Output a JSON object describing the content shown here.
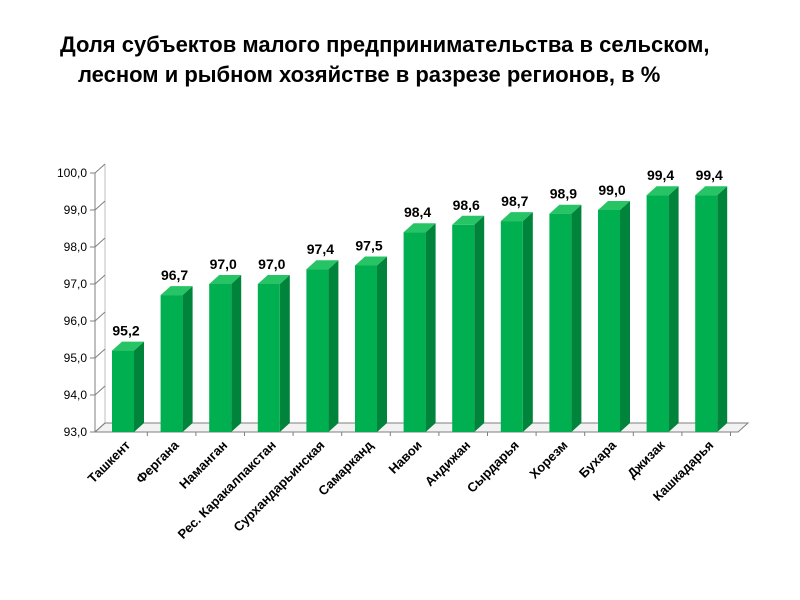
{
  "title_line1": "Доля субъектов малого предпринимательства в сельском,",
  "title_line2": "лесном и рыбном хозяйстве в разрезе регионов, в %",
  "chart_data": {
    "type": "bar",
    "title": "Доля субъектов малого предпринимательства в сельском, лесном и рыбном хозяйстве в разрезе регионов, в %",
    "categories": [
      "Ташкент",
      "Фергана",
      "Наманган",
      "Рес. Каракалпакстан",
      "Сурхандарьинская",
      "Самарканд",
      "Навои",
      "Андижан",
      "Сырдарья",
      "Хорезм",
      "Бухара",
      "Джизак",
      "Кашкадарья"
    ],
    "values": [
      95.2,
      96.7,
      97.0,
      97.0,
      97.4,
      97.5,
      98.4,
      98.6,
      98.7,
      98.9,
      99.0,
      99.4,
      99.4
    ],
    "data_labels": [
      "95,2",
      "96,7",
      "97,0",
      "97,0",
      "97,4",
      "97,5",
      "98,4",
      "98,6",
      "98,7",
      "98,9",
      "99,0",
      "99,4",
      "99,4"
    ],
    "ylim": [
      93,
      100
    ],
    "yticks": [
      93,
      94,
      95,
      96,
      97,
      98,
      99,
      100
    ],
    "ytick_labels": [
      "93,0",
      "94,0",
      "95,0",
      "96,0",
      "97,0",
      "98,0",
      "99,0",
      "100,0"
    ],
    "xlabel": "",
    "ylabel": "",
    "grid": false,
    "legend": "none",
    "colors": {
      "bar_front": "#00b050",
      "bar_side": "#00833a",
      "bar_top": "#27c466",
      "axis": "#7f7f7f"
    }
  }
}
